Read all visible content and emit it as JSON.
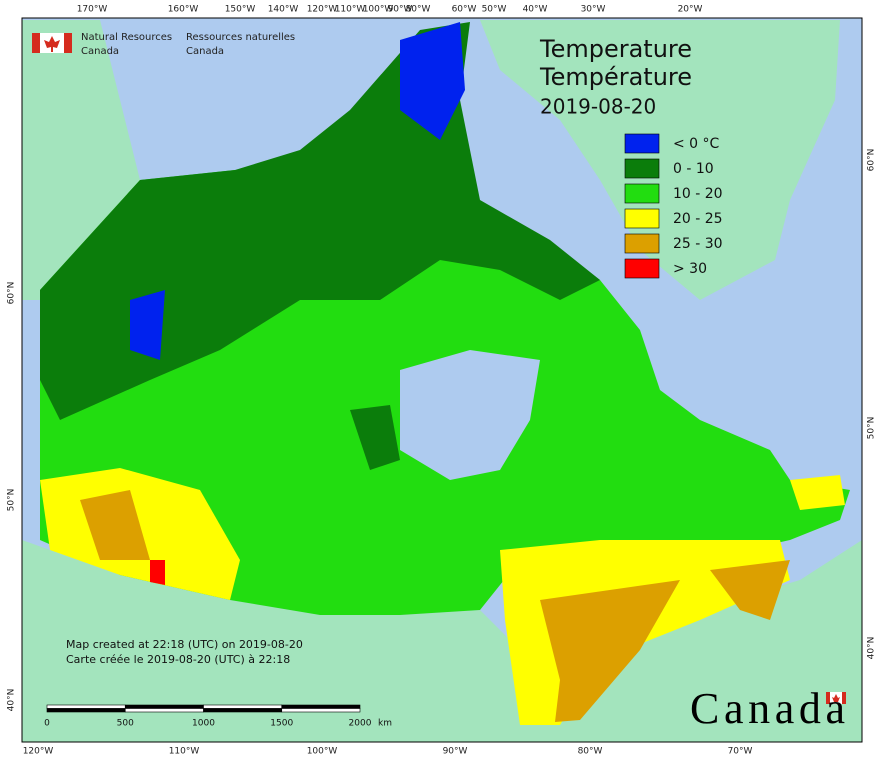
{
  "header": {
    "org_en": [
      "Natural Resources",
      "Canada"
    ],
    "org_fr": [
      "Ressources naturelles",
      "Canada"
    ]
  },
  "title": {
    "lines": [
      "Temperature",
      "Température"
    ],
    "date": "2019-08-20"
  },
  "legend": [
    {
      "label": "< 0 °C",
      "color": "#0022ee"
    },
    {
      "label": "0 - 10",
      "color": "#0b7d0b"
    },
    {
      "label": "10 - 20",
      "color": "#22dd10"
    },
    {
      "label": "20 - 25",
      "color": "#ffff00"
    },
    {
      "label": "25 - 30",
      "color": "#dca000"
    },
    {
      "label": "> 30",
      "color": "#ff0000"
    }
  ],
  "graticule": {
    "top": [
      "170°W",
      "160°W",
      "150°W",
      "140°W",
      "120°W",
      "110°W",
      "100°W",
      "90°W",
      "80°W",
      "60°W",
      "50°W",
      "40°W",
      "30°W",
      "20°W"
    ],
    "bottom": [
      "120°W",
      "110°W",
      "100°W",
      "90°W",
      "80°W",
      "70°W"
    ],
    "left": [
      "60°N",
      "50°N",
      "40°N"
    ],
    "right": [
      "60°N",
      "50°N",
      "40°N"
    ]
  },
  "credits": [
    "Map created at 22:18 (UTC) on 2019-08-20",
    "Carte créée le 2019-08-20 (UTC) à 22:18"
  ],
  "scale_bar": {
    "ticks": [
      0,
      500,
      1000,
      1500,
      2000
    ],
    "unit": "km"
  },
  "wordmark": "Canada"
}
